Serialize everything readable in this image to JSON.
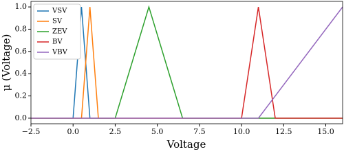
{
  "chart_data": {
    "type": "line",
    "x_label": "Voltage",
    "y_label": "μ (Voltage)",
    "xlim": [
      -2.5,
      16
    ],
    "ylim": [
      -0.05,
      1.05
    ],
    "xticks": [
      {
        "value": -2.5,
        "label": "−2.5"
      },
      {
        "value": 0,
        "label": "0.0"
      },
      2.5,
      {
        "value": 5,
        "label": "5.0"
      },
      7.5,
      {
        "value": 10,
        "label": "10.0"
      },
      12.5,
      {
        "value": 15,
        "label": "15.0"
      }
    ],
    "yticks": [
      {
        "value": 0,
        "label": "0.0"
      },
      0.2,
      0.4,
      0.6,
      0.8,
      {
        "value": 1,
        "label": "1.0"
      }
    ],
    "legend": "upper-left",
    "series": [
      {
        "name": "VSV",
        "color": "#1f77b4",
        "x": [
          -2.5,
          0,
          0.5,
          1,
          16
        ],
        "values": [
          0,
          0,
          1,
          0,
          0
        ]
      },
      {
        "name": "SV",
        "color": "#ff7f0e",
        "x": [
          -2.5,
          0.5,
          1,
          1.5,
          16
        ],
        "values": [
          0,
          0,
          1,
          0,
          0
        ]
      },
      {
        "name": "ZEV",
        "color": "#2ca02c",
        "x": [
          -2.5,
          2.5,
          4.5,
          6.5,
          16
        ],
        "values": [
          0,
          0,
          1,
          0,
          0
        ]
      },
      {
        "name": "BV",
        "color": "#d62728",
        "x": [
          -2.5,
          10,
          11,
          12,
          16
        ],
        "values": [
          0,
          0,
          1,
          0,
          0
        ]
      },
      {
        "name": "VBV",
        "color": "#9467bd",
        "x": [
          -2.5,
          11,
          16
        ],
        "values": [
          0,
          0,
          1
        ]
      }
    ]
  }
}
